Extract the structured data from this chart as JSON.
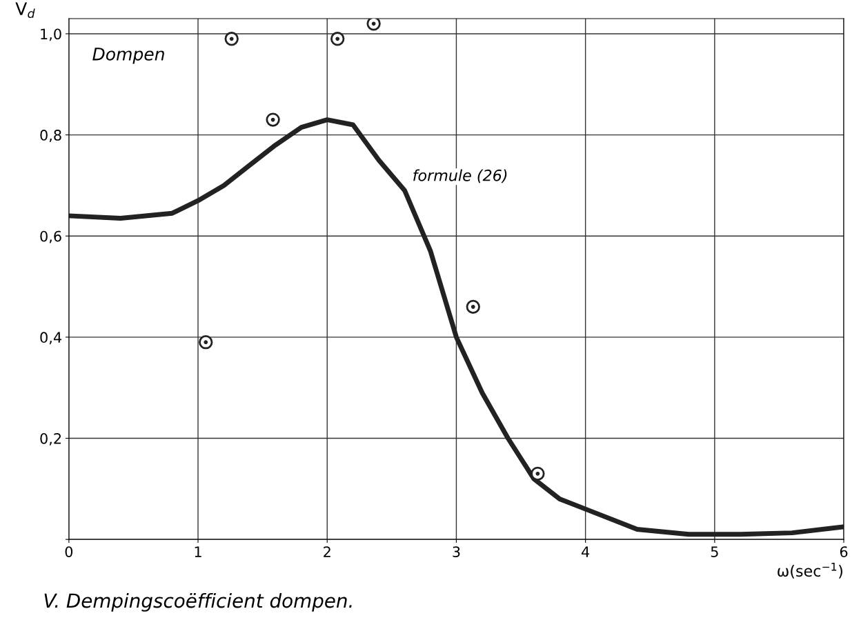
{
  "chart_data": {
    "type": "line",
    "title": "V. Dempingscoëfficient dompen.",
    "xlabel": "ω(sec$^{−1}$)",
    "ylabel": "V$_{d}$",
    "annotations": [
      "Dompen",
      {
        "text": "formule (26)",
        "x": 2.6,
        "y": 0.69
      }
    ],
    "xlim": [
      0,
      6
    ],
    "ylim": [
      0,
      1.03
    ],
    "xticks": [
      0,
      1,
      2,
      3,
      4,
      5,
      6
    ],
    "yticks": [
      {
        "value": 0,
        "label": null
      },
      {
        "value": 0.2,
        "label": "0,2"
      },
      {
        "value": 0.4,
        "label": "0,4"
      },
      {
        "value": 0.6,
        "label": "0,6"
      },
      {
        "value": 0.8,
        "label": "0,8"
      },
      {
        "value": 1.0,
        "label": "1,0"
      }
    ],
    "grid": true,
    "series": [
      {
        "color": "#222222",
        "marker": "none",
        "line_style": "solid",
        "x": [
          0,
          0.4,
          0.8,
          1.0,
          1.2,
          1.4,
          1.6,
          1.8,
          2.0,
          2.2,
          2.4,
          2.6,
          2.8,
          3.0,
          3.2,
          3.4,
          3.6,
          3.8,
          4.0,
          4.4,
          4.8,
          5.2,
          5.6,
          6.0
        ],
        "values": [
          0.64,
          0.635,
          0.645,
          0.67,
          0.7,
          0.74,
          0.78,
          0.815,
          0.83,
          0.82,
          0.75,
          0.69,
          0.57,
          0.4,
          0.29,
          0.2,
          0.12,
          0.08,
          0.06,
          0.02,
          0.01,
          0.01,
          0.013,
          0.025
        ]
      },
      {
        "type": "scatter",
        "color": "#222222",
        "marker": "circle",
        "x": [
          1.06,
          1.26,
          1.58,
          2.08,
          2.36,
          3.13,
          3.63
        ],
        "values": [
          0.39,
          0.99,
          0.83,
          0.99,
          1.02,
          0.46,
          0.13
        ]
      }
    ]
  }
}
